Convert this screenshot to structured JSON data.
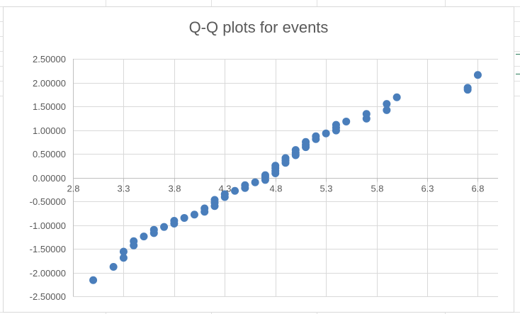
{
  "chart_data": {
    "type": "scatter",
    "title": "Q-Q plots for events",
    "xlabel": "",
    "ylabel": "",
    "xlim": [
      2.8,
      7.0
    ],
    "ylim": [
      -2.5,
      2.5
    ],
    "x_ticks": [
      2.8,
      3.3,
      3.8,
      4.3,
      4.8,
      5.3,
      5.8,
      6.3,
      6.8
    ],
    "x_tick_labels": [
      "2.8",
      "3.3",
      "3.8",
      "4.3",
      "4.8",
      "5.3",
      "5.8",
      "6.3",
      "6.8"
    ],
    "y_ticks": [
      2.5,
      2.0,
      1.5,
      1.0,
      0.5,
      0.0,
      -0.5,
      -1.0,
      -1.5,
      -2.0,
      -2.5
    ],
    "y_tick_labels": [
      "2.50000",
      "2.00000",
      "1.50000",
      "1.00000",
      "0.50000",
      "0.00000",
      "-0.50000",
      "-1.00000",
      "-1.50000",
      "-2.00000",
      "-2.50000"
    ],
    "grid": true,
    "legend": "none",
    "marker_color": "#4a7ebb",
    "series": [
      {
        "x": [
          3.0,
          3.2,
          3.3,
          3.3,
          3.4,
          3.4,
          3.5,
          3.6,
          3.6,
          3.7,
          3.8,
          3.8,
          3.9,
          4.0,
          4.1,
          4.1,
          4.2,
          4.2,
          4.2,
          4.3,
          4.3,
          4.4,
          4.5,
          4.5,
          4.6,
          4.7,
          4.7,
          4.7,
          4.8,
          4.8,
          4.8,
          4.8,
          4.9,
          4.9,
          4.9,
          5.0,
          5.0,
          5.0,
          5.1,
          5.1,
          5.1,
          5.2,
          5.2,
          5.3,
          5.4,
          5.4,
          5.4,
          5.5,
          5.7,
          5.7,
          5.9,
          5.9,
          6.0,
          6.7,
          6.7,
          6.8
        ],
        "y": [
          -2.16,
          -1.88,
          -1.69,
          -1.56,
          -1.43,
          -1.34,
          -1.24,
          -1.17,
          -1.1,
          -1.04,
          -0.97,
          -0.91,
          -0.85,
          -0.78,
          -0.72,
          -0.65,
          -0.6,
          -0.53,
          -0.47,
          -0.41,
          -0.35,
          -0.28,
          -0.22,
          -0.16,
          -0.1,
          -0.05,
          0.01,
          0.05,
          0.09,
          0.14,
          0.2,
          0.25,
          0.31,
          0.36,
          0.41,
          0.47,
          0.52,
          0.58,
          0.64,
          0.69,
          0.75,
          0.81,
          0.87,
          0.93,
          0.99,
          1.05,
          1.11,
          1.18,
          1.24,
          1.34,
          1.42,
          1.55,
          1.69,
          1.85,
          1.89,
          2.16
        ]
      }
    ]
  }
}
